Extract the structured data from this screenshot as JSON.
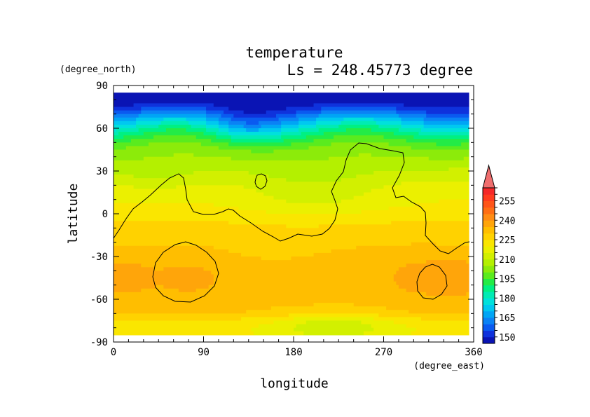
{
  "chart_data": {
    "type": "heatmap",
    "title": "temperature",
    "subtitle": "Ls = 248.45773 degree",
    "xlabel": "longitude",
    "ylabel": "latitude",
    "x_units": "(degree_east)",
    "y_units": "(degree_north)",
    "xlim": [
      0,
      360
    ],
    "ylim": [
      -90,
      90
    ],
    "xticks": [
      0,
      90,
      180,
      270,
      360
    ],
    "yticks": [
      90,
      60,
      30,
      0,
      -30,
      -60,
      -90
    ],
    "field_lon_range": [
      0,
      355
    ],
    "field_lat_range": [
      -85,
      85
    ],
    "colorbar": {
      "labels": [
        150,
        165,
        180,
        195,
        210,
        225,
        240,
        255
      ],
      "levels": [
        145,
        150,
        155,
        160,
        165,
        170,
        175,
        180,
        185,
        190,
        195,
        200,
        205,
        210,
        215,
        220,
        225,
        230,
        235,
        240,
        245,
        250,
        255,
        260,
        265
      ],
      "colors": [
        "#0a14b4",
        "#0f32dc",
        "#0a5af0",
        "#0a82f5",
        "#00a5f5",
        "#00c8f0",
        "#00e1dc",
        "#00ebb4",
        "#00f082",
        "#23eb46",
        "#5aeb1e",
        "#8ceb0a",
        "#b4f000",
        "#d2f000",
        "#ebf000",
        "#fae600",
        "#ffd200",
        "#ffbe00",
        "#ffa50a",
        "#ff8c14",
        "#ff6e14",
        "#ff5519",
        "#ff3c1e",
        "#f52828",
        "#f06e6e"
      ]
    },
    "contour_level_note": "",
    "profiles": {
      "lat_anchors": [
        85,
        78,
        72,
        65,
        60,
        55,
        50,
        45,
        40,
        35,
        30,
        25,
        20,
        15,
        10,
        5,
        0,
        -5,
        -10,
        -15,
        -20,
        -25,
        -30,
        -40,
        -50,
        -60,
        -70,
        -75,
        -80,
        -85
      ],
      "temp_anchors": [
        146,
        147,
        157,
        172,
        182,
        190,
        197,
        202,
        205,
        208,
        211,
        214,
        217,
        219,
        220,
        221,
        223,
        225,
        227,
        228,
        229,
        231,
        232,
        233,
        233,
        232,
        230,
        224,
        221,
        221
      ]
    }
  }
}
